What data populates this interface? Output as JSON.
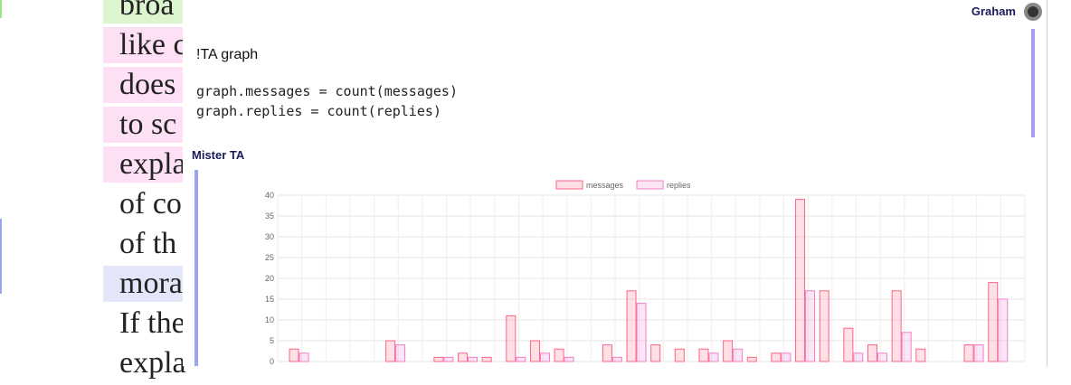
{
  "background_text": {
    "lines": [
      "broa",
      "like c",
      "does",
      "to sc",
      "expla",
      "of co",
      "of th",
      "mora",
      "If the",
      "expla"
    ]
  },
  "messages": [
    {
      "author": "Graham",
      "text": "!TA graph",
      "code": [
        "graph.messages = count(messages)",
        "graph.replies = count(replies)"
      ]
    },
    {
      "author": "Mister TA"
    }
  ],
  "chart_data": {
    "type": "bar",
    "categories": [
      null,
      null,
      null,
      null,
      null,
      null,
      null,
      null,
      null,
      null,
      null,
      null,
      null,
      null,
      null,
      null,
      null,
      null,
      null,
      null,
      null,
      null,
      null,
      null,
      null,
      null,
      null,
      null,
      null,
      null,
      null
    ],
    "series": [
      {
        "name": "messages",
        "color": "#ff6384",
        "values": [
          3,
          0,
          0,
          0,
          5,
          0,
          1,
          2,
          1,
          11,
          5,
          3,
          0,
          4,
          17,
          4,
          3,
          3,
          5,
          1,
          2,
          39,
          17,
          8,
          4,
          17,
          3,
          0,
          4,
          19,
          0
        ]
      },
      {
        "name": "replies",
        "color": "#f27fc8",
        "values": [
          2,
          0,
          0,
          0,
          4,
          0,
          1,
          1,
          0,
          1,
          2,
          1,
          0,
          1,
          14,
          0,
          0,
          2,
          3,
          0,
          2,
          17,
          0,
          2,
          2,
          7,
          0,
          0,
          4,
          15,
          0
        ]
      }
    ],
    "ylim": [
      0,
      40
    ],
    "yticks": [
      0,
      5,
      10,
      15,
      20,
      25,
      30,
      35,
      40
    ],
    "grid": true,
    "legend": "top"
  }
}
